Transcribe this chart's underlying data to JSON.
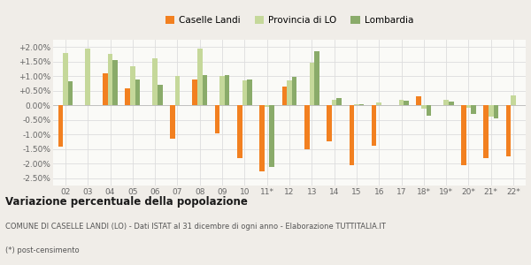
{
  "years": [
    "02",
    "03",
    "04",
    "05",
    "06",
    "07",
    "08",
    "09",
    "10",
    "11*",
    "12",
    "13",
    "14",
    "15",
    "16",
    "17",
    "18*",
    "19*",
    "20*",
    "21*",
    "22*"
  ],
  "caselle_landi": [
    -1.42,
    0.0,
    1.1,
    0.57,
    0.0,
    -1.15,
    0.88,
    -0.95,
    -1.82,
    -2.25,
    0.65,
    -1.5,
    -1.25,
    -2.05,
    -1.4,
    0.0,
    0.32,
    0.0,
    -2.05,
    -1.8,
    -1.75
  ],
  "provincia_lo": [
    1.8,
    1.95,
    1.78,
    1.35,
    1.6,
    1.0,
    1.95,
    1.0,
    0.85,
    -0.05,
    0.85,
    1.45,
    0.2,
    0.05,
    0.1,
    0.2,
    -0.1,
    0.18,
    -0.08,
    -0.4,
    0.35
  ],
  "lombardia": [
    0.82,
    0.0,
    1.55,
    0.88,
    0.7,
    0.0,
    1.05,
    1.05,
    0.9,
    -2.1,
    0.98,
    1.85,
    0.25,
    0.05,
    0.0,
    0.15,
    -0.35,
    0.13,
    -0.3,
    -0.45,
    0.0
  ],
  "color_caselle": "#f28020",
  "color_provincia": "#c5d89a",
  "color_lombardia": "#8aab6a",
  "title": "Variazione percentuale della popolazione",
  "subtitle": "COMUNE DI CASELLE LANDI (LO) - Dati ISTAT al 31 dicembre di ogni anno - Elaborazione TUTTITALIA.IT",
  "footnote": "(*) post-censimento",
  "legend_labels": [
    "Caselle Landi",
    "Provincia di LO",
    "Lombardia"
  ],
  "ylim": [
    -2.75,
    2.25
  ],
  "yticks": [
    -2.5,
    -2.0,
    -1.5,
    -1.0,
    -0.5,
    0.0,
    0.5,
    1.0,
    1.5,
    2.0
  ],
  "bg_color": "#f0ede8",
  "plot_bg_color": "#fafaf7"
}
